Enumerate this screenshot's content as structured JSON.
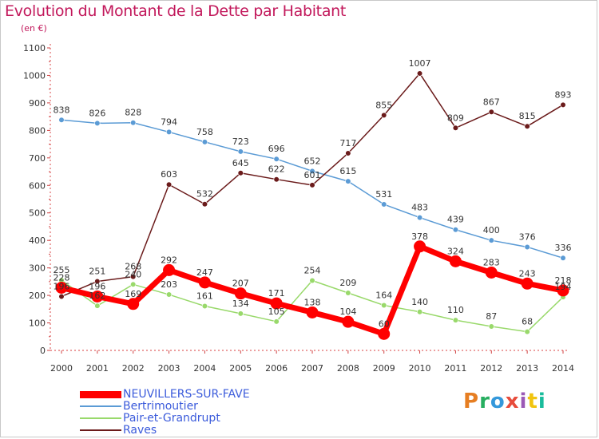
{
  "title": "Evolution du Montant de la Dette par Habitant",
  "unit_label": "(en €)",
  "logo_text": "Proxiti",
  "logo_colors": [
    "#e67e22",
    "#27ae60",
    "#3498db",
    "#e74c3c",
    "#9b59b6",
    "#f1c40f",
    "#1abc9c"
  ],
  "chart_data": {
    "type": "line",
    "xlabel": "",
    "ylabel": "",
    "x": [
      "2000",
      "2001",
      "2002",
      "2003",
      "2004",
      "2005",
      "2006",
      "2007",
      "2008",
      "2009",
      "2010",
      "2011",
      "2012",
      "2013",
      "2014"
    ],
    "ylim": [
      0,
      1100
    ],
    "yticks": [
      0,
      100,
      200,
      300,
      400,
      500,
      600,
      700,
      800,
      900,
      1000,
      1100
    ],
    "grid": false,
    "legend_position": "bottom-left",
    "series": [
      {
        "name": "NEUVILLERS-SUR-FAVE",
        "color": "#ff0000",
        "values": [
          228,
          196,
          169,
          292,
          247,
          207,
          171,
          138,
          104,
          60,
          378,
          324,
          283,
          243,
          218
        ]
      },
      {
        "name": "Bertrimoutier",
        "color": "#5b9bd5",
        "values": [
          838,
          826,
          828,
          794,
          758,
          723,
          696,
          652,
          615,
          531,
          483,
          439,
          400,
          376,
          336
        ]
      },
      {
        "name": "Pair-et-Grandrupt",
        "color": "#99d96b",
        "values": [
          255,
          162,
          240,
          203,
          161,
          134,
          105,
          254,
          209,
          164,
          140,
          110,
          87,
          68,
          194
        ]
      },
      {
        "name": "Raves",
        "color": "#6b1b1b",
        "values": [
          196,
          251,
          268,
          603,
          532,
          645,
          622,
          601,
          717,
          855,
          1007,
          809,
          867,
          815,
          893
        ]
      }
    ]
  }
}
